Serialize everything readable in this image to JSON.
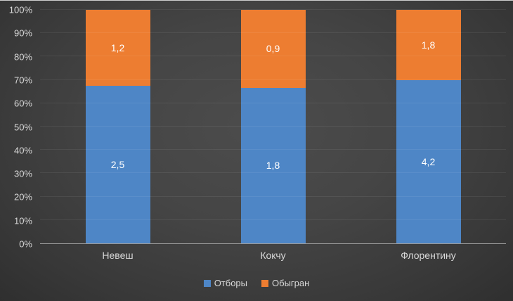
{
  "chart_data": {
    "type": "bar",
    "subtype": "stacked-100-percent",
    "title": "",
    "xlabel": "",
    "ylabel": "",
    "categories": [
      "Невеш",
      "Кокчу",
      "Флорентину"
    ],
    "series": [
      {
        "name": "Отборы",
        "color": "#4e86c6",
        "values": [
          2.5,
          1.8,
          4.2
        ],
        "labels": [
          "2,5",
          "1,8",
          "4,2"
        ]
      },
      {
        "name": "Обыгран",
        "color": "#ed7d31",
        "values": [
          1.2,
          0.9,
          1.8
        ],
        "labels": [
          "1,2",
          "0,9",
          "1,8"
        ]
      }
    ],
    "y_axis": {
      "min": 0,
      "max": 100,
      "ticks": [
        "0%",
        "10%",
        "20%",
        "30%",
        "40%",
        "50%",
        "60%",
        "70%",
        "80%",
        "90%",
        "100%"
      ]
    },
    "grid": true,
    "legend_position": "bottom",
    "legend": [
      "Отборы",
      "Обыгран"
    ]
  },
  "colors": {
    "background_center": "#4c4c4c",
    "background_edge": "#2f2f2f",
    "text": "#d9d9d9",
    "axis_line": "#9b9b9b",
    "data_label": "#ffffff"
  }
}
